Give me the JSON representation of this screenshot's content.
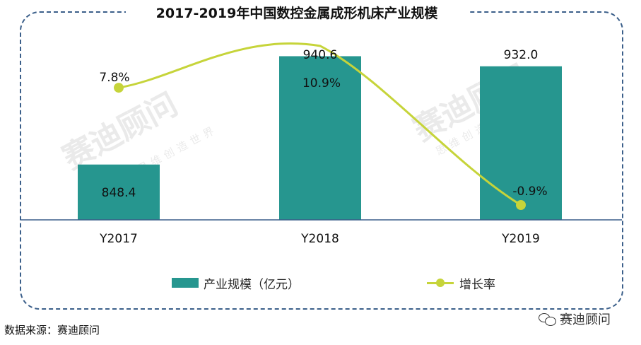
{
  "title": "2017-2019年中国数控金属成形机床产业规模",
  "source": "数据来源：赛迪顾问",
  "brand": "赛迪顾问",
  "watermark": {
    "main": "赛迪顾问",
    "sub": "思维创造世界"
  },
  "legend": {
    "bar": "产业规模（亿元）",
    "line": "增长率"
  },
  "colors": {
    "bar": "#26968f",
    "line": "#c6d43a",
    "frame": "#3b5f8a",
    "axis": "#3b5f8a"
  },
  "chart_data": {
    "type": "bar",
    "categories": [
      "Y2017",
      "Y2018",
      "Y2019"
    ],
    "series": [
      {
        "name": "产业规模（亿元）",
        "type": "bar",
        "values": [
          848.4,
          940.6,
          932.0
        ],
        "labels": [
          "848.4",
          "940.6",
          "932.0"
        ]
      },
      {
        "name": "增长率",
        "type": "line",
        "values": [
          7.8,
          10.9,
          -0.9
        ],
        "labels": [
          "7.8%",
          "10.9%",
          "-0.9%"
        ]
      }
    ],
    "xlabel": "",
    "ylabel": "",
    "legend_position": "bottom",
    "grid": false
  }
}
